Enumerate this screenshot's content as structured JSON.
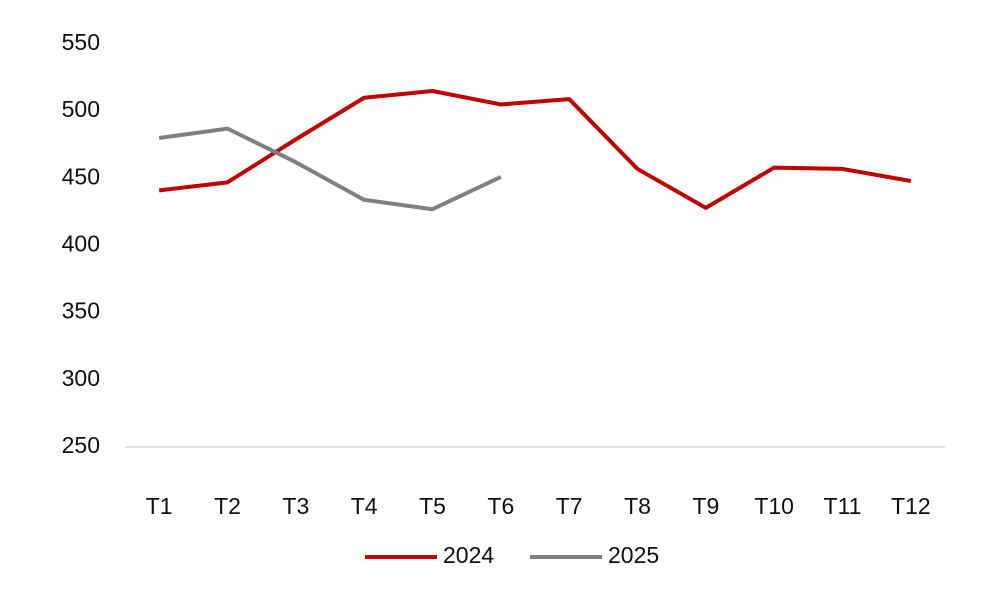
{
  "chart_data": {
    "type": "line",
    "categories": [
      "T1",
      "T2",
      "T3",
      "T4",
      "T5",
      "T6",
      "T7",
      "T8",
      "T9",
      "T10",
      "T11",
      "T12"
    ],
    "series": [
      {
        "name": "2024",
        "color": "#c00000",
        "values": [
          441,
          447,
          479,
          510,
          515,
          505,
          509,
          457,
          428,
          458,
          457,
          448
        ]
      },
      {
        "name": "2025",
        "color": "#808080",
        "values": [
          480,
          487,
          462,
          434,
          427,
          451,
          null,
          null,
          null,
          null,
          null,
          null
        ]
      }
    ],
    "ylim": [
      250,
      550
    ],
    "yticks": [
      250,
      300,
      350,
      400,
      450,
      500,
      550
    ],
    "grid": false,
    "legend": "bottom"
  }
}
